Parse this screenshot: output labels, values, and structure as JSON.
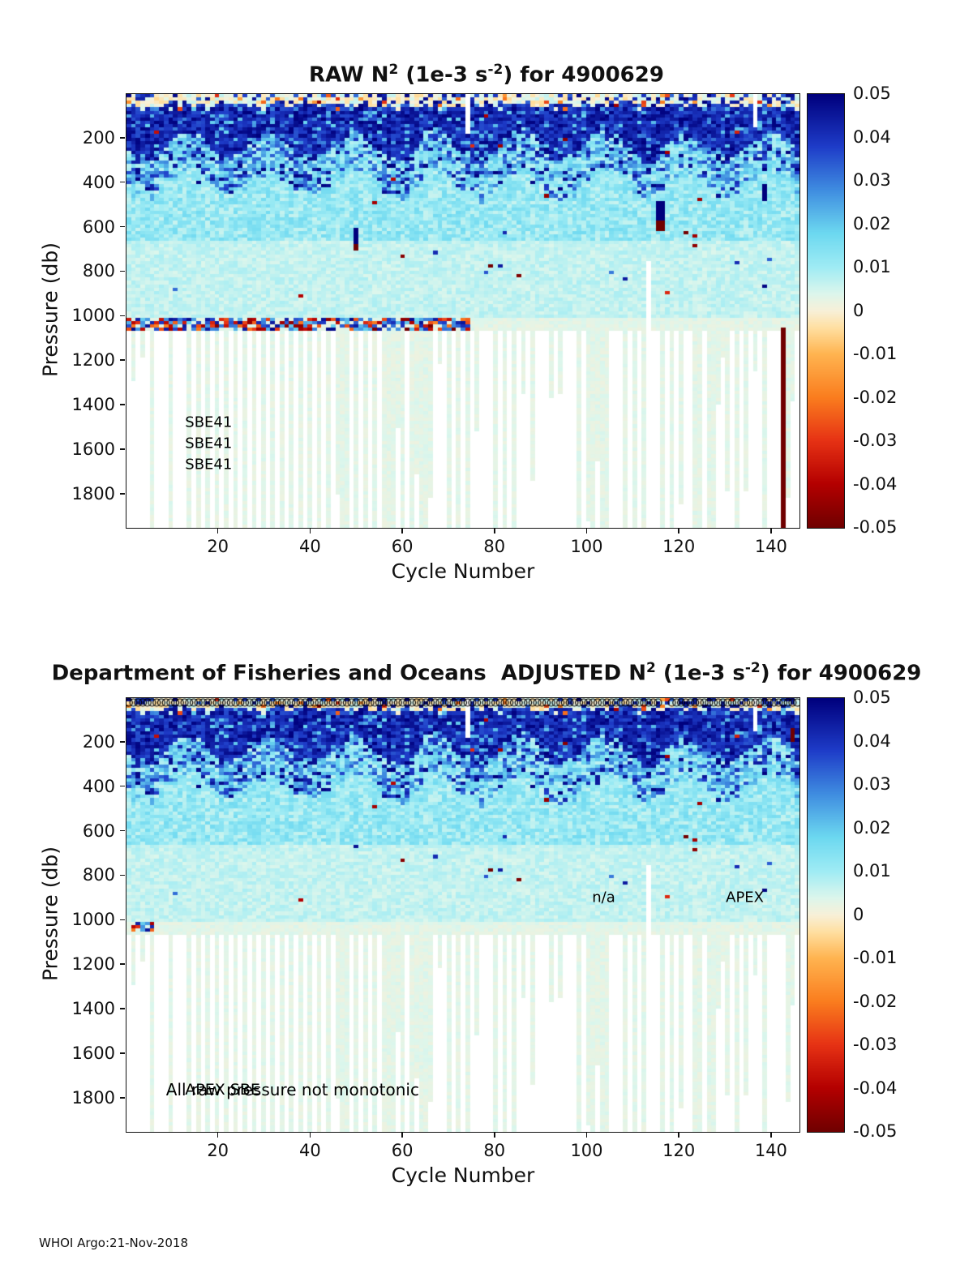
{
  "footer": {
    "text": "WHOI Argo:21-Nov-2018"
  },
  "colormap": {
    "stops": [
      [
        -0.05,
        "#700000"
      ],
      [
        -0.04,
        "#b40000"
      ],
      [
        -0.03,
        "#e63214"
      ],
      [
        -0.02,
        "#fa7d1e"
      ],
      [
        -0.01,
        "#ffb450"
      ],
      [
        -0.004,
        "#ffdfa0"
      ],
      [
        0,
        "#f8f0d8"
      ],
      [
        0.004,
        "#dcf6ec"
      ],
      [
        0.01,
        "#a0ecf4"
      ],
      [
        0.018,
        "#6cd8f0"
      ],
      [
        0.028,
        "#3f8ce0"
      ],
      [
        0.038,
        "#1e3cc8"
      ],
      [
        0.05,
        "#00007d"
      ]
    ]
  },
  "chart_data": [
    {
      "type": "heatmap",
      "title": {
        "pre": "RAW N",
        "sup1": "2",
        "mid": " (1e-3 s",
        "sup2": "-2",
        "post": ") for 4900629"
      },
      "xlabel": "Cycle Number",
      "ylabel": "Pressure (db)",
      "xlim": [
        0,
        146
      ],
      "ylim": [
        0,
        1950
      ],
      "xticks": [
        20,
        40,
        60,
        80,
        100,
        120,
        140
      ],
      "yticks": [
        200,
        400,
        600,
        800,
        1000,
        1200,
        1400,
        1600,
        1800
      ],
      "colorbar_ticks": [
        "0.05",
        "0.04",
        "0.03",
        "0.02",
        "0.01",
        "0",
        "-0.01",
        "-0.02",
        "-0.03",
        "-0.04",
        "-0.05"
      ],
      "value_range": [
        -0.05,
        0.05
      ],
      "annotations": [
        {
          "text": "SBE41",
          "c": 13.8,
          "p": 1480,
          "size": 18
        },
        {
          "text": "SBE41",
          "c": 13.8,
          "p": 1575,
          "size": 18
        },
        {
          "text": "SBE41",
          "c": 13.8,
          "p": 1670,
          "size": 18
        }
      ],
      "anomalies": [
        {
          "c": 50,
          "w": 1,
          "p1": 600,
          "p2": 668,
          "v": 0.05
        },
        {
          "c": 50,
          "w": 1,
          "p1": 668,
          "p2": 702,
          "v": -0.05
        },
        {
          "c": 115,
          "w": 2,
          "p1": 470,
          "p2": 562,
          "v": 0.05
        },
        {
          "c": 115,
          "w": 2,
          "p1": 562,
          "p2": 612,
          "v": -0.05
        },
        {
          "c": 138,
          "w": 1,
          "p1": 392,
          "p2": 468,
          "v": 0.05
        },
        {
          "c": 142,
          "w": 1,
          "p1": 1048,
          "p2": 1950,
          "v": -0.05
        }
      ],
      "gaps": [
        {
          "c": 113,
          "w": 1,
          "p1": 745,
          "p2": 1950
        },
        {
          "c": 74,
          "w": 1,
          "p1": 0,
          "p2": 170
        },
        {
          "c": 136,
          "w": 1,
          "p1": 0,
          "p2": 140
        }
      ],
      "band1000": {
        "cmin": 1,
        "cmax": 74,
        "p1": 1000,
        "p2": 1052,
        "prob": 0.78
      },
      "markers": {
        "show": false
      }
    },
    {
      "type": "heatmap",
      "title": {
        "pre": "Department of Fisheries and Oceans  ADJUSTED N",
        "sup1": "2",
        "mid": " (1e-3 s",
        "sup2": "-2",
        "post": ") for 4900629"
      },
      "xlabel": "Cycle Number",
      "ylabel": "Pressure (db)",
      "xlim": [
        0,
        146
      ],
      "ylim": [
        0,
        1950
      ],
      "xticks": [
        20,
        40,
        60,
        80,
        100,
        120,
        140
      ],
      "yticks": [
        200,
        400,
        600,
        800,
        1000,
        1200,
        1400,
        1600,
        1800
      ],
      "colorbar_ticks": [
        "0.05",
        "0.04",
        "0.03",
        "0.02",
        "0.01",
        "0",
        "-0.01",
        "-0.02",
        "-0.03",
        "-0.04",
        "-0.05"
      ],
      "value_range": [
        -0.05,
        0.05
      ],
      "annotations": [
        {
          "text": "n/a",
          "c": 101.5,
          "p": 900,
          "size": 18
        },
        {
          "text": "APEX",
          "c": 130.3,
          "p": 900,
          "size": 18
        },
        {
          "text": "All raw pressure not monotonic",
          "c": 9.7,
          "p": 1765,
          "size": 20
        },
        {
          "text": "APEX SBE",
          "c": 13.8,
          "p": 1765,
          "size": 19
        }
      ],
      "anomalies": [
        {
          "c": 144,
          "w": 1,
          "p1": 135,
          "p2": 185,
          "v": -0.05
        },
        {
          "c": 102,
          "w": 1,
          "p1": 345,
          "p2": 382,
          "v": 0.045
        }
      ],
      "gaps": [
        {
          "c": 113,
          "w": 1,
          "p1": 745,
          "p2": 1950
        },
        {
          "c": 74,
          "w": 1,
          "p1": 0,
          "p2": 170
        },
        {
          "c": 136,
          "w": 1,
          "p1": 0,
          "p2": 140
        }
      ],
      "band1000": {
        "cmin": 2,
        "cmax": 6,
        "p1": 1000,
        "p2": 1048,
        "prob": 0.8
      },
      "markers": {
        "show": true,
        "skip": [
          116,
          117
        ],
        "p": 20,
        "r": 4.5
      }
    }
  ],
  "gen": {
    "row_db": 15,
    "cycles": 145,
    "edge": {
      "base": 205,
      "sin_amp": 65,
      "sin_freq": 0.35,
      "noise": 45
    },
    "surface_depth": {
      "base": 35,
      "noise": 30
    },
    "levels": {
      "surface_hi": [
        0.032,
        0.018
      ],
      "surface_neg": [
        -0.012,
        -0.02
      ],
      "surface_cream": [
        -0.005,
        0.012
      ],
      "navy": [
        0.035,
        0.015
      ],
      "navy_alt": [
        0.018,
        0.014
      ],
      "trans_hi": [
        0.03,
        0.02
      ],
      "trans": [
        0.007,
        0.022
      ],
      "mid": [
        0.006,
        0.011
      ],
      "lower": [
        0.004,
        0.005
      ],
      "deep": [
        0.0015,
        0.003
      ],
      "speck_prob": 0.0035,
      "band_amp": [
        0.018,
        0.032
      ],
      "band_pos_prob": 0.55
    },
    "deep_missing": {
      "start": 1060,
      "even_prob": 0.85,
      "odd_prob": 0.3,
      "full_prob": 0.72,
      "min_depth": 1150,
      "depth_span": 800
    }
  }
}
